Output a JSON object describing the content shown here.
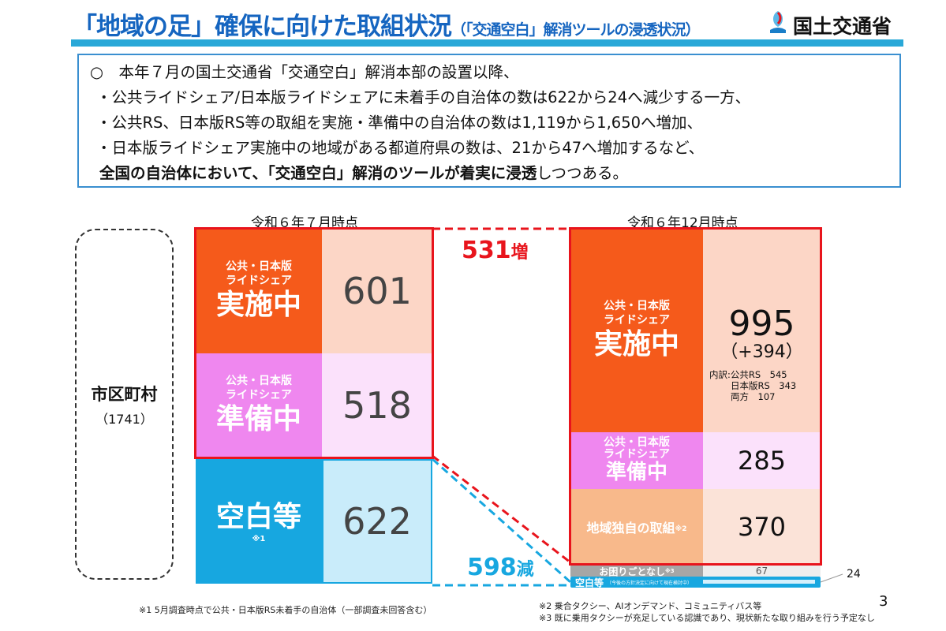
{
  "header": {
    "title": "「地域の足」確保に向けた取組状況",
    "subtitle": "（「交通空白」解消ツールの浸透状況）",
    "ministry": "国土交通省"
  },
  "summary": {
    "lines": [
      "○　本年７月の国土交通省「交通空白」解消本部の設置以降、",
      "・公共ライドシェア/日本版ライドシェアに未着手の自治体の数は622から24へ減少する一方、",
      "・公共RS、日本版RS等の取組を実施・準備中の自治体の数は1,119から1,650へ増加、",
      "・日本版ライドシェア実施中の地域がある都道府県の数は、21から47へ増加するなど、"
    ],
    "conclusion_bold": "全国の自治体において、「交通空白」解消のツールが着実に浸透",
    "conclusion_tail": "しつつある。"
  },
  "municipalities": {
    "label": "市区町村",
    "count": "（1741）"
  },
  "july": {
    "header": "令和６年７月時点",
    "rows": [
      {
        "small": "公共・日本版\nライドシェア",
        "label": "実施中",
        "value": "601"
      },
      {
        "small": "公共・日本版\nライドシェア",
        "label": "準備中",
        "value": "518"
      },
      {
        "label": "空白等",
        "note": "※1",
        "value": "622"
      }
    ]
  },
  "december": {
    "header": "令和６年12月時点",
    "implementing": {
      "small": "公共・日本版\nライドシェア",
      "label": "実施中",
      "value": "995",
      "delta": "（+394）",
      "breakdown": [
        "内訳:公共RS　545",
        "日本版RS　343",
        "両方　107"
      ]
    },
    "preparing": {
      "small": "公共・日本版\nライドシェア",
      "label": "準備中",
      "value": "285"
    },
    "local": {
      "label": "地域独自の取組",
      "note": "※2",
      "value": "370"
    },
    "no_trouble": {
      "label": "お困りごとなし",
      "note": "※3",
      "value": "67"
    },
    "blank": {
      "label": "空白等",
      "note": "（今後の方針決定に向けて現在検討中）",
      "value": "24"
    }
  },
  "changes": {
    "increase": "531",
    "increase_suffix": "増",
    "decrease": "598",
    "decrease_suffix": "減"
  },
  "footnotes": {
    "n1": "※1  5月調査時点で公共・日本版RS未着手の自治体（一部調査未回答含む）",
    "n2": "※2 乗合タクシー、AIオンデマンド、コミュニティバス等",
    "n3": "※3 既に乗用タクシーが充足している認識であり、現状新たな取り組みを行う予定なし"
  },
  "page_number": "3",
  "colors": {
    "orange": "#f55a1b",
    "pink": "#ef87ef",
    "blue": "#17a7e0",
    "peach": "#f8b98b",
    "gray": "#a6a6a6",
    "red": "#e8141c",
    "title_blue": "#1565c0"
  }
}
